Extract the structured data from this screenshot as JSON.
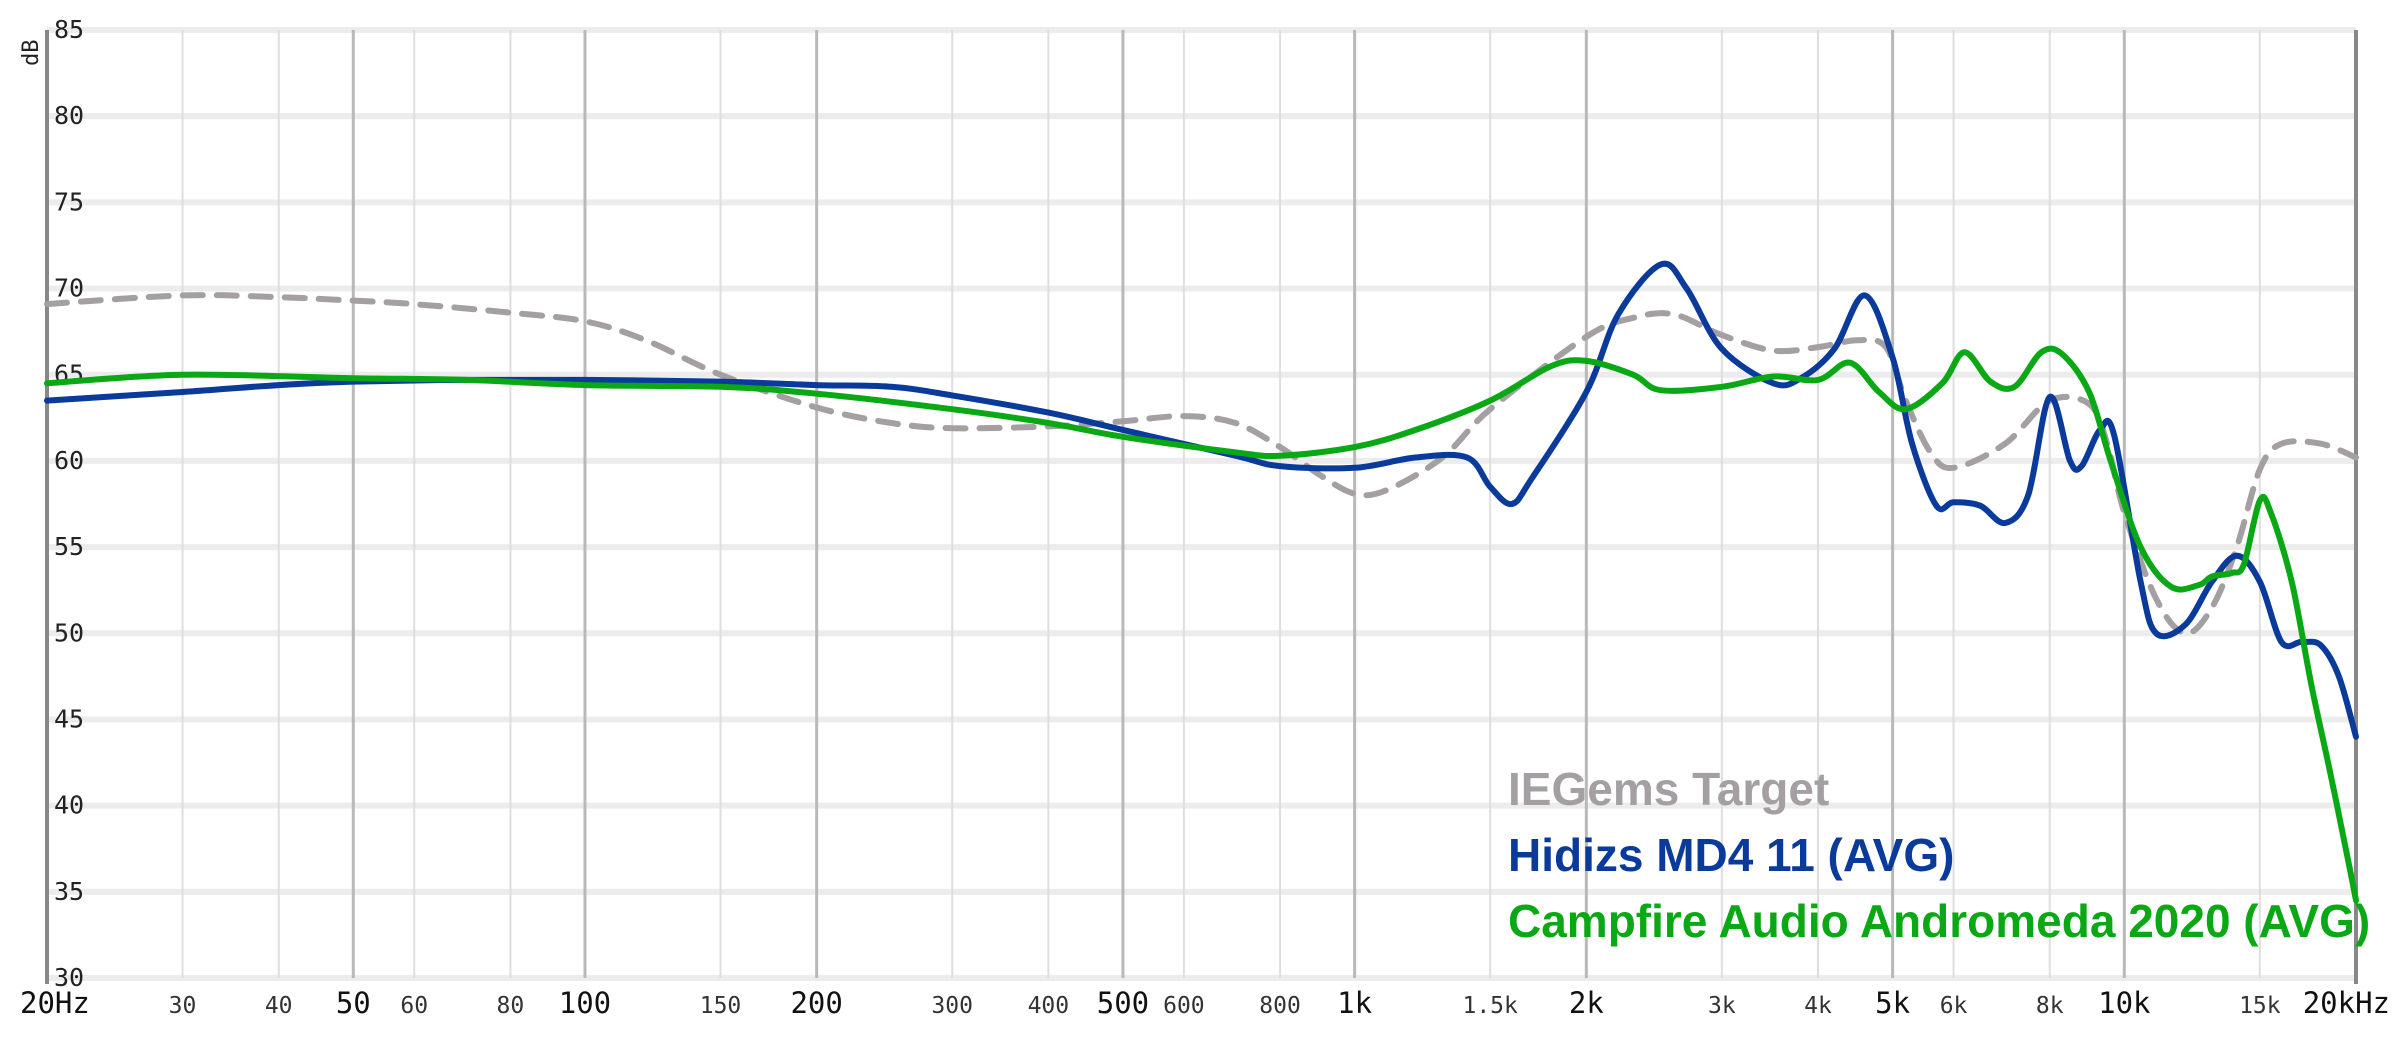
{
  "chart_data": {
    "type": "line",
    "title": "",
    "xlabel": "",
    "ylabel": "dB",
    "x_scale": "log",
    "xlim": [
      20,
      20000
    ],
    "ylim": [
      30,
      85
    ],
    "grid": true,
    "legend_position": "bottom-right",
    "y_ticks": [
      "30",
      "35",
      "40",
      "45",
      "50",
      "55",
      "60",
      "65",
      "70",
      "75",
      "80",
      "85"
    ],
    "x_ticks": [
      {
        "value": 20,
        "label": "20Hz",
        "major": true
      },
      {
        "value": 30,
        "label": "30",
        "major": false
      },
      {
        "value": 40,
        "label": "40",
        "major": false
      },
      {
        "value": 50,
        "label": "50",
        "major": true
      },
      {
        "value": 60,
        "label": "60",
        "major": false
      },
      {
        "value": 80,
        "label": "80",
        "major": false
      },
      {
        "value": 100,
        "label": "100",
        "major": true
      },
      {
        "value": 150,
        "label": "150",
        "major": false
      },
      {
        "value": 200,
        "label": "200",
        "major": true
      },
      {
        "value": 300,
        "label": "300",
        "major": false
      },
      {
        "value": 400,
        "label": "400",
        "major": false
      },
      {
        "value": 500,
        "label": "500",
        "major": true
      },
      {
        "value": 600,
        "label": "600",
        "major": false
      },
      {
        "value": 800,
        "label": "800",
        "major": false
      },
      {
        "value": 1000,
        "label": "1k",
        "major": true
      },
      {
        "value": 1500,
        "label": "1.5k",
        "major": false
      },
      {
        "value": 2000,
        "label": "2k",
        "major": true
      },
      {
        "value": 3000,
        "label": "3k",
        "major": false
      },
      {
        "value": 4000,
        "label": "4k",
        "major": false
      },
      {
        "value": 5000,
        "label": "5k",
        "major": true
      },
      {
        "value": 6000,
        "label": "6k",
        "major": false
      },
      {
        "value": 8000,
        "label": "8k",
        "major": false
      },
      {
        "value": 10000,
        "label": "10k",
        "major": true
      },
      {
        "value": 15000,
        "label": "15k",
        "major": false
      },
      {
        "value": 20000,
        "label": "20kHz",
        "major": true
      }
    ],
    "series": [
      {
        "name": "IEGems Target",
        "color": "#a49fa3",
        "dashed": true,
        "points": [
          [
            20,
            69.1
          ],
          [
            30,
            69.6
          ],
          [
            40,
            69.5
          ],
          [
            50,
            69.3
          ],
          [
            60,
            69.1
          ],
          [
            80,
            68.6
          ],
          [
            100,
            68.1
          ],
          [
            120,
            67.0
          ],
          [
            150,
            65.0
          ],
          [
            200,
            63.1
          ],
          [
            250,
            62.2
          ],
          [
            300,
            61.9
          ],
          [
            400,
            62.0
          ],
          [
            500,
            62.3
          ],
          [
            600,
            62.6
          ],
          [
            700,
            62.2
          ],
          [
            800,
            60.8
          ],
          [
            900,
            59.2
          ],
          [
            1000,
            58.1
          ],
          [
            1100,
            58.3
          ],
          [
            1300,
            60.2
          ],
          [
            1500,
            63.0
          ],
          [
            2000,
            67.2
          ],
          [
            2300,
            68.3
          ],
          [
            2600,
            68.5
          ],
          [
            3000,
            67.3
          ],
          [
            3500,
            66.4
          ],
          [
            4000,
            66.6
          ],
          [
            4500,
            67.0
          ],
          [
            4900,
            66.6
          ],
          [
            5200,
            63.5
          ],
          [
            5600,
            60.5
          ],
          [
            6000,
            59.6
          ],
          [
            7000,
            61.0
          ],
          [
            8000,
            63.5
          ],
          [
            9000,
            63.3
          ],
          [
            9500,
            61.0
          ],
          [
            10000,
            57.0
          ],
          [
            11000,
            52.0
          ],
          [
            12000,
            50.0
          ],
          [
            13000,
            51.5
          ],
          [
            14000,
            55.0
          ],
          [
            15000,
            59.5
          ],
          [
            16000,
            61.0
          ],
          [
            18000,
            61.0
          ],
          [
            20000,
            60.2
          ]
        ]
      },
      {
        "name": "Hidizs MD4 11 (AVG)",
        "color": "#0a3a9a",
        "dashed": false,
        "points": [
          [
            20,
            63.5
          ],
          [
            30,
            64.0
          ],
          [
            40,
            64.4
          ],
          [
            50,
            64.6
          ],
          [
            70,
            64.7
          ],
          [
            100,
            64.7
          ],
          [
            150,
            64.6
          ],
          [
            200,
            64.4
          ],
          [
            250,
            64.3
          ],
          [
            300,
            63.8
          ],
          [
            400,
            62.8
          ],
          [
            500,
            61.8
          ],
          [
            700,
            60.3
          ],
          [
            800,
            59.7
          ],
          [
            1000,
            59.6
          ],
          [
            1200,
            60.2
          ],
          [
            1400,
            60.2
          ],
          [
            1500,
            58.5
          ],
          [
            1600,
            57.5
          ],
          [
            1700,
            59.0
          ],
          [
            2000,
            64.0
          ],
          [
            2200,
            68.5
          ],
          [
            2500,
            71.4
          ],
          [
            2700,
            70.0
          ],
          [
            3000,
            66.5
          ],
          [
            3500,
            64.5
          ],
          [
            3800,
            64.8
          ],
          [
            4200,
            66.5
          ],
          [
            4600,
            69.6
          ],
          [
            5000,
            66.0
          ],
          [
            5300,
            61.0
          ],
          [
            5700,
            57.4
          ],
          [
            6000,
            57.6
          ],
          [
            6500,
            57.4
          ],
          [
            7000,
            56.4
          ],
          [
            7500,
            58.0
          ],
          [
            8000,
            63.7
          ],
          [
            8500,
            60.0
          ],
          [
            8800,
            59.7
          ],
          [
            9300,
            61.8
          ],
          [
            9700,
            61.5
          ],
          [
            10500,
            53.0
          ],
          [
            11000,
            50.0
          ],
          [
            12000,
            50.5
          ],
          [
            13000,
            53.0
          ],
          [
            14000,
            54.5
          ],
          [
            15000,
            53.0
          ],
          [
            16000,
            49.5
          ],
          [
            17000,
            49.5
          ],
          [
            18000,
            49.3
          ],
          [
            19000,
            47.5
          ],
          [
            20000,
            44.0
          ]
        ]
      },
      {
        "name": "Campfire Audio Andromeda 2020 (AVG)",
        "color": "#0aa814",
        "dashed": false,
        "points": [
          [
            20,
            64.5
          ],
          [
            30,
            65.0
          ],
          [
            50,
            64.8
          ],
          [
            70,
            64.7
          ],
          [
            100,
            64.4
          ],
          [
            150,
            64.3
          ],
          [
            200,
            63.9
          ],
          [
            300,
            63.0
          ],
          [
            400,
            62.2
          ],
          [
            500,
            61.4
          ],
          [
            700,
            60.5
          ],
          [
            800,
            60.3
          ],
          [
            1000,
            60.8
          ],
          [
            1200,
            61.8
          ],
          [
            1500,
            63.5
          ],
          [
            1800,
            65.5
          ],
          [
            2000,
            65.8
          ],
          [
            2300,
            65.0
          ],
          [
            2500,
            64.1
          ],
          [
            3000,
            64.3
          ],
          [
            3500,
            64.9
          ],
          [
            4000,
            64.7
          ],
          [
            4400,
            65.7
          ],
          [
            4800,
            64.0
          ],
          [
            5200,
            63.0
          ],
          [
            5800,
            64.5
          ],
          [
            6200,
            66.3
          ],
          [
            6700,
            64.6
          ],
          [
            7200,
            64.3
          ],
          [
            7800,
            66.3
          ],
          [
            8300,
            66.2
          ],
          [
            9000,
            64.0
          ],
          [
            9600,
            60.0
          ],
          [
            10500,
            55.0
          ],
          [
            11500,
            52.7
          ],
          [
            12500,
            52.8
          ],
          [
            13000,
            53.3
          ],
          [
            13800,
            53.5
          ],
          [
            14300,
            54.0
          ],
          [
            15000,
            57.7
          ],
          [
            15500,
            57.0
          ],
          [
            16500,
            53.0
          ],
          [
            17500,
            47.0
          ],
          [
            18500,
            42.0
          ],
          [
            19500,
            37.0
          ],
          [
            20000,
            34.5
          ]
        ]
      }
    ]
  }
}
